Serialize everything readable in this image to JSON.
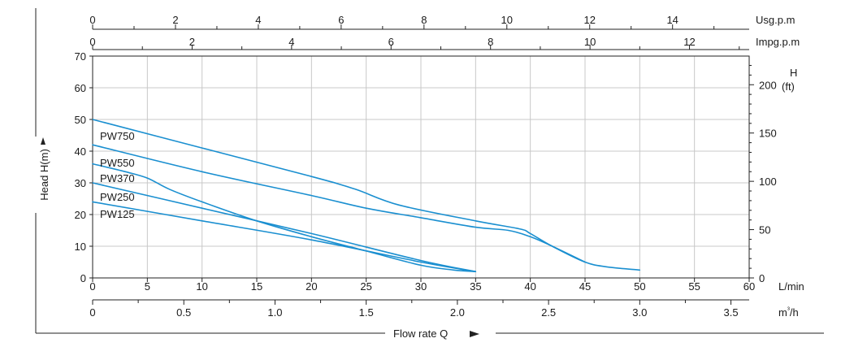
{
  "chart_data": {
    "type": "line",
    "title": "",
    "line_color": "#1a8fd0",
    "grid": true,
    "x_primary": {
      "unit": "L/min",
      "range": [
        0,
        60
      ],
      "ticks": [
        "0",
        "5",
        "10",
        "15",
        "20",
        "25",
        "30",
        "35",
        "40",
        "45",
        "50",
        "55",
        "60"
      ]
    },
    "x_m3h": {
      "unit": "m³/h",
      "range": [
        0,
        3.6
      ],
      "ticks": [
        "0",
        "0.5",
        "1.0",
        "1.5",
        "2.0",
        "2.5",
        "3.0",
        "3.5"
      ]
    },
    "x_usgpm": {
      "unit": "Usg.p.m",
      "range": [
        0,
        15.85
      ],
      "ticks": [
        "0",
        "2",
        "4",
        "6",
        "8",
        "10",
        "12",
        "14"
      ]
    },
    "x_impgpm": {
      "unit": "Impg.p.m",
      "range": [
        0,
        13.2
      ],
      "ticks": [
        "0",
        "2",
        "4",
        "6",
        "8",
        "10",
        "12"
      ]
    },
    "y_left": {
      "label": "Head H(m)",
      "range": [
        0,
        70
      ],
      "ticks": [
        "0",
        "10",
        "20",
        "30",
        "40",
        "50",
        "60",
        "70"
      ]
    },
    "y_right": {
      "label_top": "H",
      "unit": "(ft)",
      "range": [
        0,
        229.66
      ],
      "ticks": [
        "0",
        "50",
        "100",
        "150",
        "200"
      ]
    },
    "xlabel": "Flow rate Q",
    "series": [
      {
        "name": "PW750",
        "x": [
          0,
          10,
          20,
          24,
          28,
          35,
          39,
          40,
          42,
          45,
          47,
          50
        ],
        "y": [
          50,
          41,
          32,
          28,
          23,
          18,
          15.5,
          14,
          10,
          5,
          3.5,
          2.5
        ]
      },
      {
        "name": "PW550",
        "x": [
          0,
          10,
          20,
          25,
          30,
          35,
          38,
          40,
          42,
          45
        ],
        "y": [
          42,
          33.5,
          26,
          22,
          19,
          16,
          15,
          13,
          10,
          5
        ]
      },
      {
        "name": "PW370",
        "x": [
          0,
          3,
          5,
          7,
          10,
          15,
          20,
          25,
          30,
          33,
          35
        ],
        "y": [
          36,
          33.5,
          31.5,
          28,
          24,
          18,
          13,
          8.5,
          4,
          2.5,
          2
        ]
      },
      {
        "name": "PW250",
        "x": [
          0,
          10,
          20,
          30,
          35
        ],
        "y": [
          30,
          22,
          14,
          5.5,
          2
        ]
      },
      {
        "name": "PW125",
        "x": [
          0,
          10,
          20,
          30,
          35
        ],
        "y": [
          24,
          18,
          12,
          5,
          2
        ]
      }
    ]
  }
}
